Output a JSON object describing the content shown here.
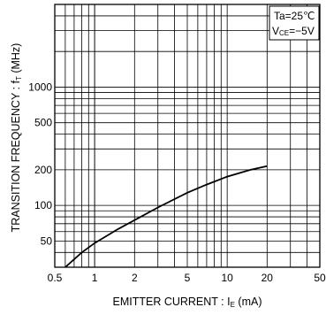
{
  "chart_data": {
    "type": "line",
    "title": "",
    "x_scale": "log",
    "y_scale": "log",
    "xlim": [
      0.5,
      50
    ],
    "ylim": [
      30,
      5000
    ],
    "grid": true,
    "xlabel": {
      "main": "EMITTER  CURRENT : I",
      "sub": "E",
      "unit": " (mA)"
    },
    "ylabel": {
      "main": "TRANSITION  FREQUENCY : f",
      "sub": "T",
      "unit": " (MHz)"
    },
    "x_ticks": [
      {
        "value": 0.5,
        "label": "0.5"
      },
      {
        "value": 1,
        "label": "1"
      },
      {
        "value": 2,
        "label": "2"
      },
      {
        "value": 5,
        "label": "5"
      },
      {
        "value": 10,
        "label": "10"
      },
      {
        "value": 20,
        "label": "20"
      },
      {
        "value": 50,
        "label": "50"
      }
    ],
    "y_ticks": [
      {
        "value": 50,
        "label": "50"
      },
      {
        "value": 100,
        "label": "100"
      },
      {
        "value": 200,
        "label": "200"
      },
      {
        "value": 500,
        "label": "500"
      },
      {
        "value": 1000,
        "label": "1000"
      }
    ],
    "legend": {
      "position": "top-right",
      "line1": "Ta=25℃",
      "line2_main": "V",
      "line2_sub": "CE",
      "line2_rest": "=−5V"
    },
    "series": [
      {
        "color": "#000000",
        "points": [
          {
            "x": 0.6,
            "y": 30
          },
          {
            "x": 0.7,
            "y": 35
          },
          {
            "x": 0.8,
            "y": 40
          },
          {
            "x": 1.0,
            "y": 48
          },
          {
            "x": 1.5,
            "y": 63
          },
          {
            "x": 2.0,
            "y": 75
          },
          {
            "x": 3.0,
            "y": 96
          },
          {
            "x": 5.0,
            "y": 128
          },
          {
            "x": 7.0,
            "y": 150
          },
          {
            "x": 10.0,
            "y": 175
          },
          {
            "x": 15.0,
            "y": 200
          },
          {
            "x": 20.0,
            "y": 215
          }
        ]
      }
    ]
  }
}
